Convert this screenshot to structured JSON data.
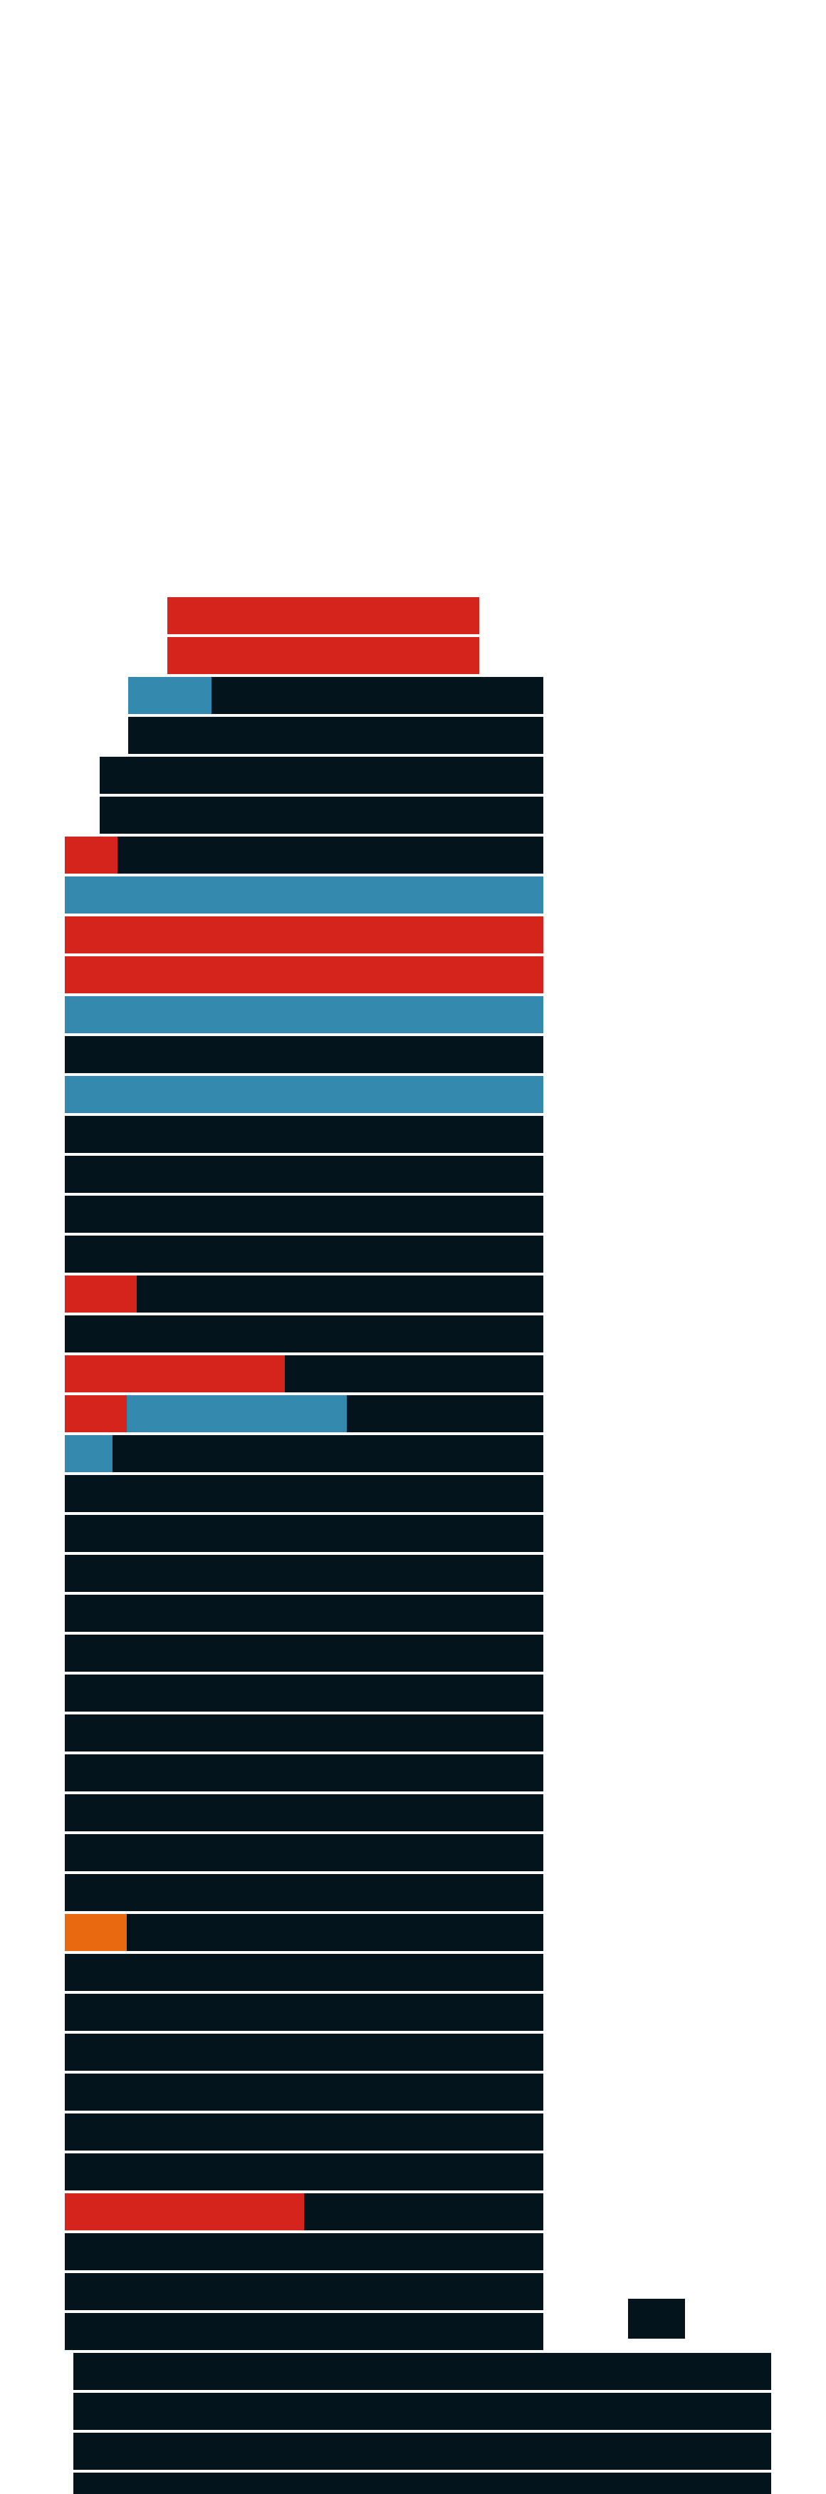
{
  "colors": {
    "background": "#ffffff",
    "occupied": "#04141c",
    "red": "#d5241c",
    "blue": "#3389ae",
    "orange": "#e8690f",
    "separator": "#eef1f5"
  },
  "legend": [],
  "floors_top_down": [
    {
      "color_runs": [
        {
          "color": "red",
          "share": 1.0
        }
      ]
    },
    {
      "color_runs": [
        {
          "color": "red",
          "share": 1.0
        }
      ]
    },
    {
      "color_runs": [
        {
          "color": "blue",
          "share": 0.2
        }
      ]
    },
    {
      "color_runs": []
    },
    {
      "color_runs": []
    },
    {
      "color_runs": []
    },
    {
      "color_runs": [
        {
          "color": "red",
          "share": 0.11
        }
      ]
    },
    {
      "color_runs": [
        {
          "color": "blue",
          "share": 1.0
        }
      ]
    },
    {
      "color_runs": [
        {
          "color": "red",
          "share": 1.0
        }
      ]
    },
    {
      "color_runs": [
        {
          "color": "red",
          "share": 1.0
        }
      ]
    },
    {
      "color_runs": [
        {
          "color": "blue",
          "share": 1.0
        }
      ]
    },
    {
      "color_runs": []
    },
    {
      "color_runs": [
        {
          "color": "blue",
          "share": 1.0
        }
      ]
    },
    {
      "color_runs": []
    },
    {
      "color_runs": []
    },
    {
      "color_runs": []
    },
    {
      "color_runs": []
    },
    {
      "color_runs": [
        {
          "color": "red",
          "share": 0.15
        }
      ]
    },
    {
      "color_runs": []
    },
    {
      "color_runs": [
        {
          "color": "red",
          "share": 0.46
        }
      ]
    },
    {
      "color_runs": [
        {
          "color": "red",
          "share": 0.13
        },
        {
          "color": "blue",
          "share": 0.46
        }
      ]
    },
    {
      "color_runs": [
        {
          "color": "blue",
          "share": 0.1
        }
      ]
    },
    {
      "color_runs": []
    },
    {
      "color_runs": []
    },
    {
      "color_runs": []
    },
    {
      "color_runs": []
    },
    {
      "color_runs": []
    },
    {
      "color_runs": []
    },
    {
      "color_runs": []
    },
    {
      "color_runs": []
    },
    {
      "color_runs": []
    },
    {
      "color_runs": []
    },
    {
      "color_runs": []
    },
    {
      "color_runs": [
        {
          "color": "orange",
          "share": 0.13
        }
      ]
    },
    {
      "color_runs": []
    },
    {
      "color_runs": []
    },
    {
      "color_runs": []
    },
    {
      "color_runs": []
    },
    {
      "color_runs": []
    },
    {
      "color_runs": []
    },
    {
      "color_runs": [
        {
          "color": "red",
          "share": 0.5
        }
      ]
    },
    {
      "color_runs": []
    },
    {
      "color_runs": []
    },
    {
      "color_runs": []
    },
    {
      "color_runs": []
    },
    {
      "color_runs": []
    },
    {
      "color_runs": []
    },
    {
      "color_runs": []
    }
  ]
}
